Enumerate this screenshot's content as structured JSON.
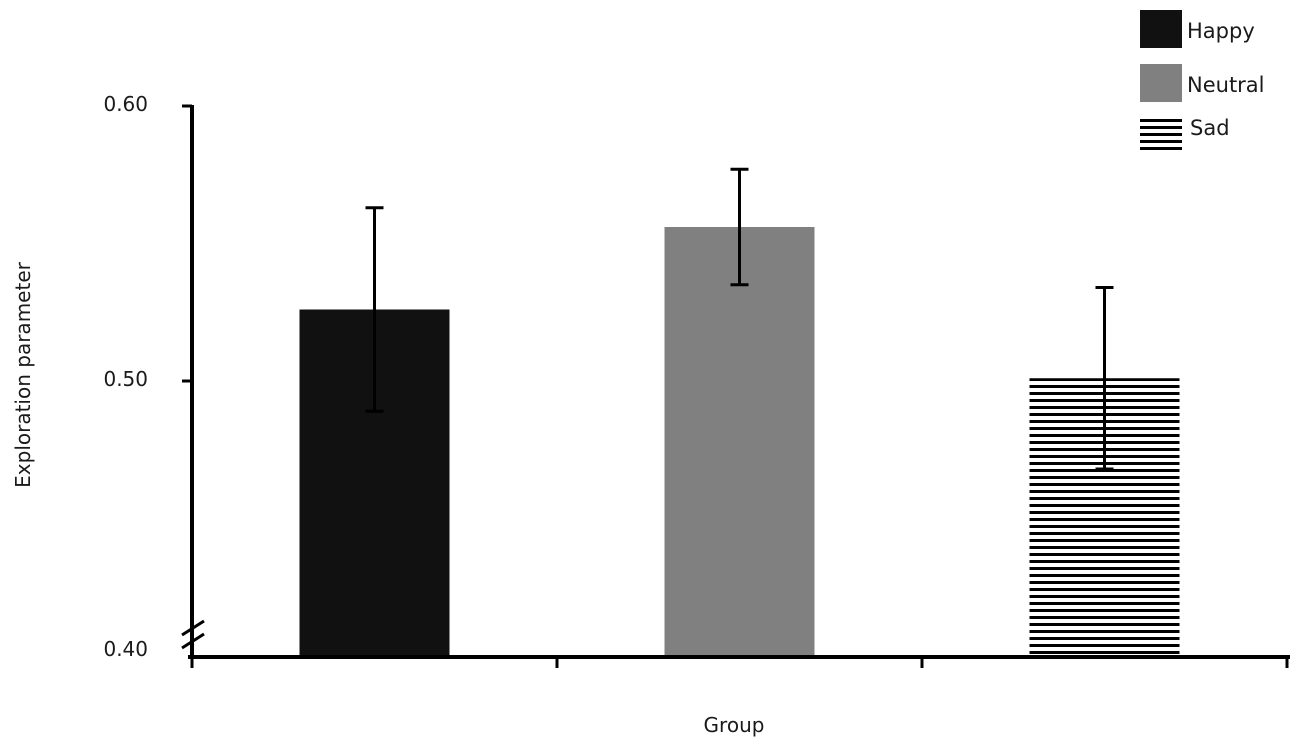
{
  "chart_data": {
    "type": "bar",
    "categories": [
      "Happy",
      "Neutral",
      "Sad"
    ],
    "values": [
      0.526,
      0.556,
      0.501
    ],
    "errors": [
      0.037,
      0.021,
      0.033
    ],
    "xlabel": "Group",
    "ylabel": "Exploration parameter",
    "ylim": [
      0.4,
      0.6
    ],
    "yticks": [
      "0.40",
      "0.50",
      "0.60"
    ],
    "axis_break": true,
    "grid": false,
    "legend_position": "top-right",
    "legend": [
      {
        "label": "Happy",
        "fill": "solid",
        "color": "#111111"
      },
      {
        "label": "Neutral",
        "fill": "solid",
        "color": "#808080"
      },
      {
        "label": "Sad",
        "fill": "horizontal-stripes",
        "color": "#000000"
      }
    ]
  }
}
